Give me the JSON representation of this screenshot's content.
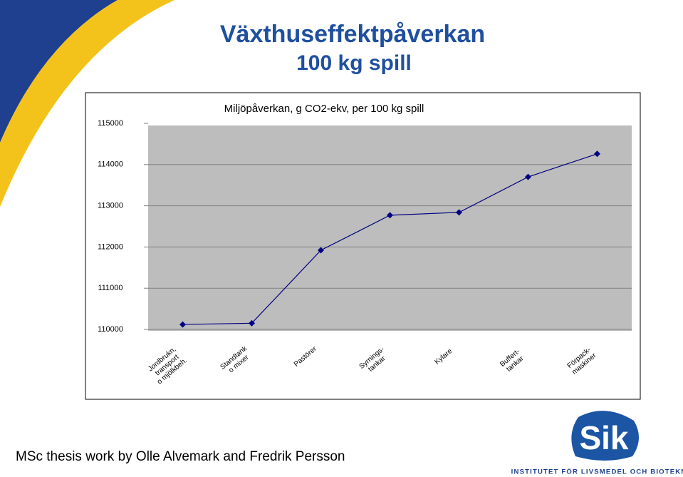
{
  "slide": {
    "title": "Växthuseffektpåverkan",
    "subtitle": "100 kg spill",
    "footer": "MSc thesis work by Olle Alvemark and Fredrik Persson"
  },
  "logo": {
    "name": "Sik",
    "tagline": "INSTITUTET FÖR LIVSMEDEL OCH BIOTEKNIK"
  },
  "chart_data": {
    "type": "line",
    "title": "Miljöpåverkan, g CO2-ekv, per 100 kg spill",
    "categories": [
      "Jordbrukn,\ntransport\no mjölkbeh.",
      "Standtank\no mixer",
      "Pastörer",
      "Syrnings-\ntankar",
      "Kylare",
      "Buffert-\ntankar",
      "Förpack-\nmaskiner"
    ],
    "values": [
      110120,
      110150,
      111920,
      112770,
      112840,
      113700,
      114260
    ],
    "color": "#000080",
    "ylim": [
      110000,
      115000
    ],
    "yticks": [
      110000,
      111000,
      112000,
      113000,
      114000,
      115000
    ],
    "grid": true
  }
}
